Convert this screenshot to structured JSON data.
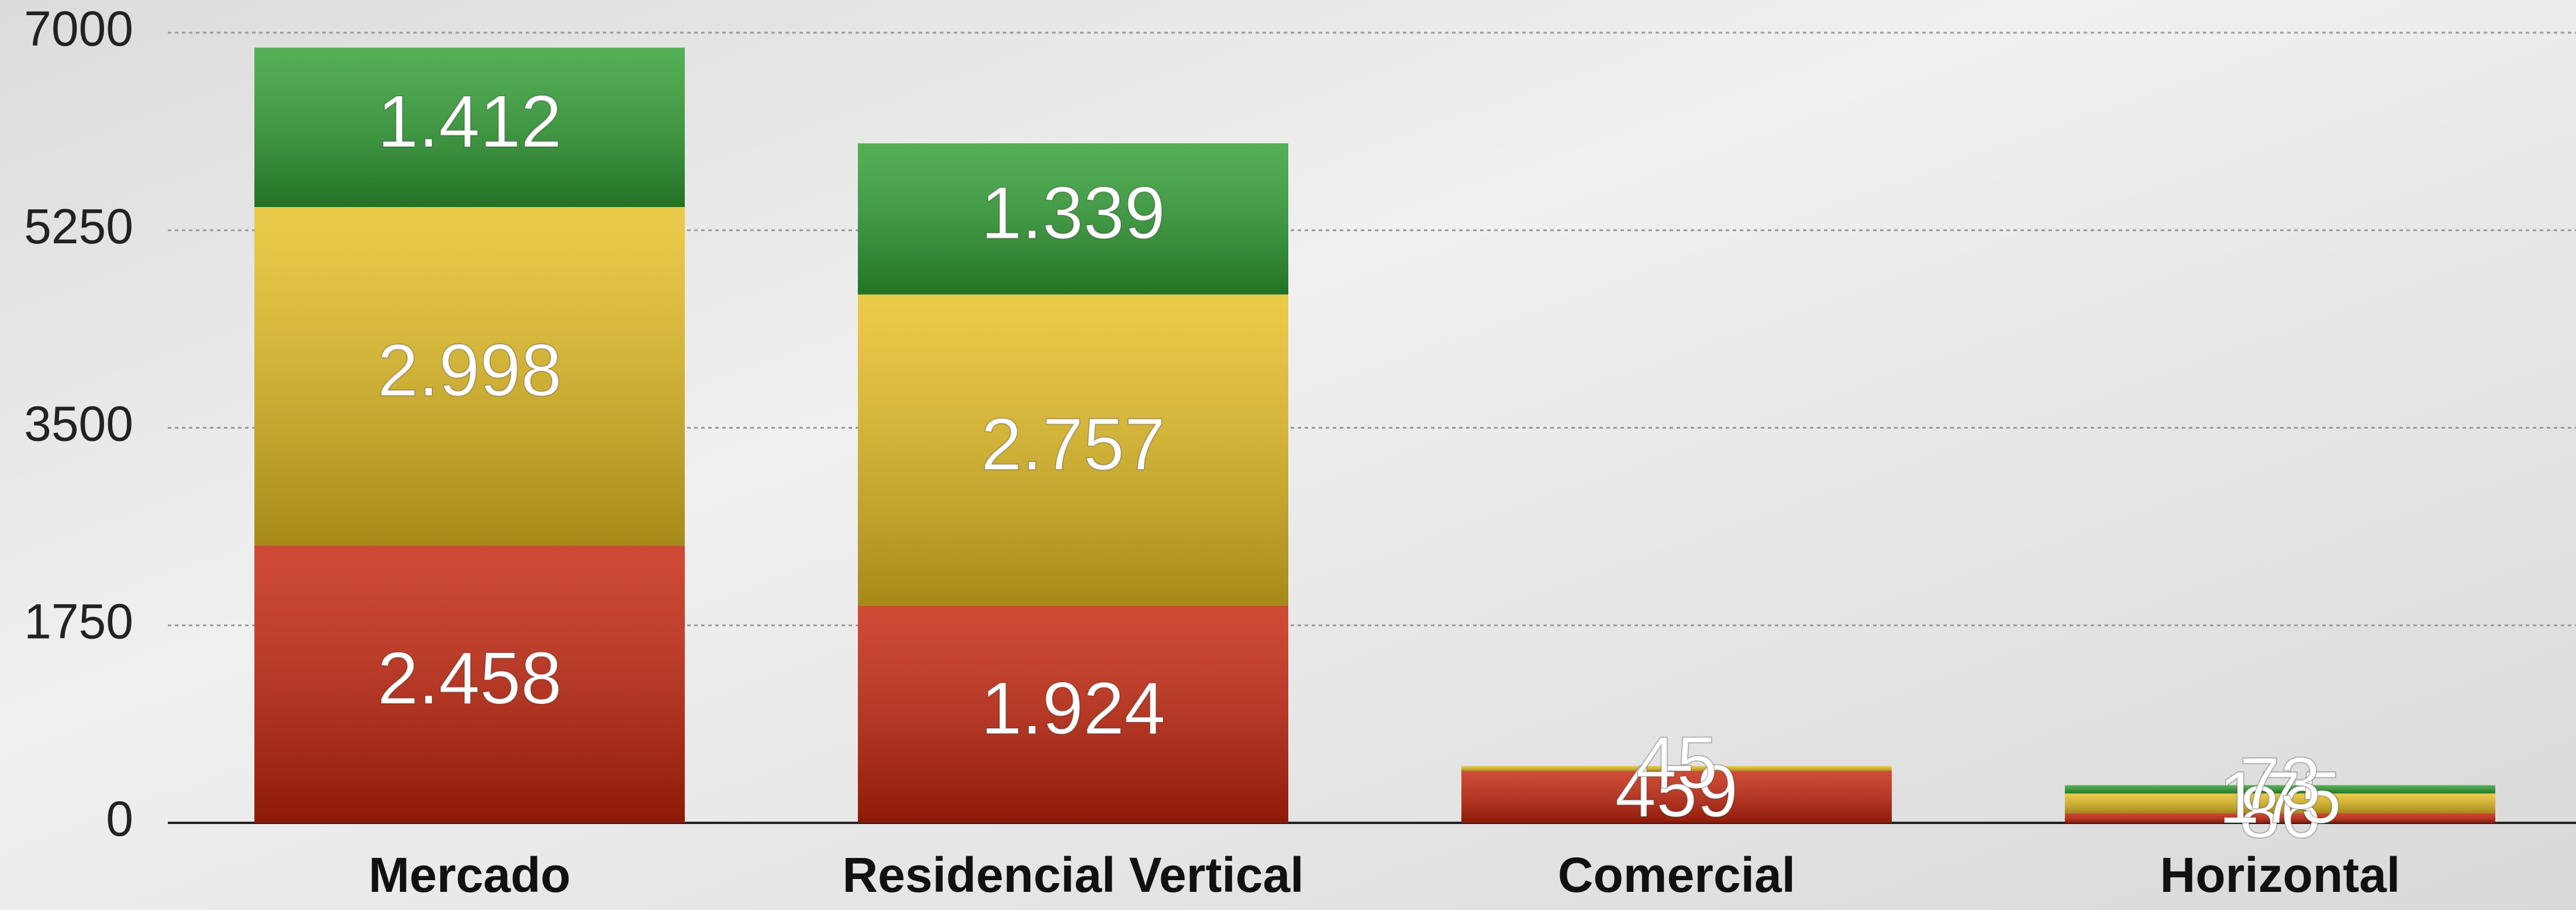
{
  "chart_data": {
    "type": "stacked_bar",
    "categories": [
      "Mercado",
      "Residencial Vertical",
      "Comercial",
      "Horizontal"
    ],
    "series": [
      {
        "color": "#c4230a",
        "values": [
          2458,
          1924,
          459,
          86
        ],
        "value_labels": [
          "2.458",
          "1.924",
          "459",
          "86"
        ]
      },
      {
        "color": "#e6bf22",
        "values": [
          2998,
          2757,
          45,
          175
        ],
        "value_labels": [
          "2.998",
          "2.757",
          "45",
          "175"
        ]
      },
      {
        "color": "#2f9e32",
        "values": [
          1412,
          1339,
          null,
          73
        ],
        "value_labels": [
          "1.412",
          "1.339",
          null,
          "73"
        ]
      }
    ],
    "ylim": [
      0,
      7000
    ],
    "yticks": [
      0,
      1750,
      3500,
      5250,
      7000
    ],
    "grid": true
  }
}
